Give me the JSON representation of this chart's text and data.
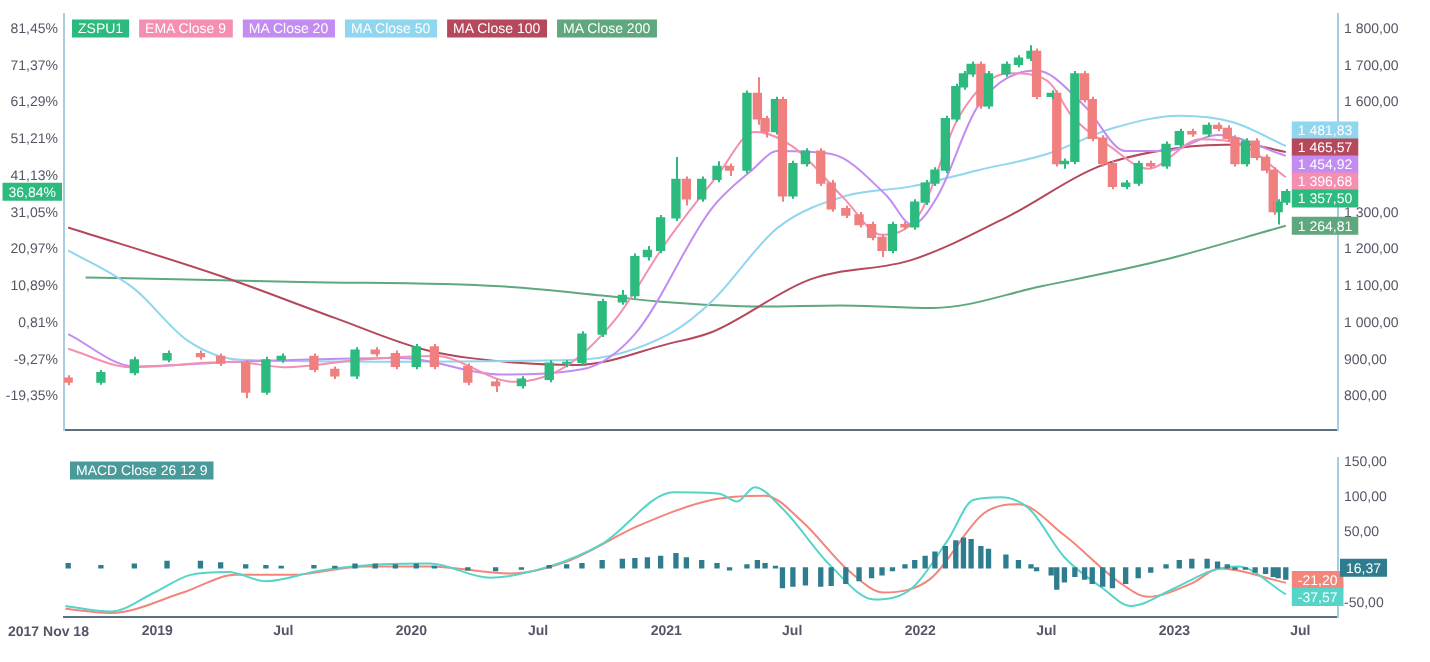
{
  "chart_data": [
    {
      "type": "candlestick",
      "legend": "top left",
      "tick_labels": "y",
      "xlim": [
        "2018-08-20",
        "2023-08-24"
      ],
      "ylim": [
        710,
        1840
      ],
      "yticks": [
        {
          "value": 800,
          "label": "800,00"
        },
        {
          "value": 900,
          "label": "900,00"
        },
        {
          "value": 1000,
          "label": "1 000,00"
        },
        {
          "value": 1100,
          "label": "1 100,00"
        },
        {
          "value": 1200,
          "label": "1 200,00"
        },
        {
          "value": 1300,
          "label": "1 300,00"
        },
        {
          "value": 1600,
          "label": "1 600,00"
        },
        {
          "value": 1700,
          "label": "1 700,00"
        },
        {
          "value": 1800,
          "label": "1 800,00"
        }
      ],
      "y2lim": [
        -28.43,
        85.49
      ],
      "y2ticks": [
        {
          "value": -19.35,
          "label": "-19,35%"
        },
        {
          "value": -9.27,
          "label": "-9,27%"
        },
        {
          "value": 0.81,
          "label": "0,81%"
        },
        {
          "value": 10.89,
          "label": "10,89%"
        },
        {
          "value": 20.97,
          "label": "20,97%"
        },
        {
          "value": 31.05,
          "label": "31,05%"
        },
        {
          "value": 41.13,
          "label": "41,13%"
        },
        {
          "value": 51.21,
          "label": "51,21%"
        },
        {
          "value": 61.29,
          "label": "61,29%"
        },
        {
          "value": 71.37,
          "label": "71,37%"
        },
        {
          "value": 81.45,
          "label": "81,45%"
        }
      ],
      "series": [
        {
          "name": "ZSPU1",
          "x": [
            "2018-08-26",
            "2018-10-12",
            "2018-11-29",
            "2019-01-15",
            "2019-03-04",
            "2019-04-02",
            "2019-05-08",
            "2019-06-06",
            "2019-06-28",
            "2019-08-14",
            "2019-09-13",
            "2019-10-12",
            "2019-11-10",
            "2019-12-09",
            "2020-01-08",
            "2020-02-03",
            "2020-03-22",
            "2020-05-01",
            "2020-06-07",
            "2020-07-17",
            "2020-08-11",
            "2020-09-02",
            "2020-10-01",
            "2020-10-30",
            "2020-11-17",
            "2020-12-05",
            "2020-12-24",
            "2021-01-15",
            "2021-01-30",
            "2021-02-21",
            "2021-03-15",
            "2021-04-02",
            "2021-04-27",
            "2021-05-12",
            "2021-05-23",
            "2021-06-07",
            "2021-06-17",
            "2021-07-02",
            "2021-07-20",
            "2021-08-11",
            "2021-08-26",
            "2021-09-16",
            "2021-10-05",
            "2021-10-23",
            "2021-11-07",
            "2021-11-22",
            "2021-12-10",
            "2021-12-24",
            "2022-01-08",
            "2022-01-22",
            "2022-02-06",
            "2022-02-21",
            "2022-03-04",
            "2022-03-15",
            "2022-03-29",
            "2022-04-09",
            "2022-05-04",
            "2022-05-22",
            "2022-06-09",
            "2022-06-17",
            "2022-07-08",
            "2022-07-16",
            "2022-07-27",
            "2022-08-11",
            "2022-08-25",
            "2022-09-05",
            "2022-09-20",
            "2022-10-04",
            "2022-10-23",
            "2022-11-10",
            "2022-11-28",
            "2022-12-20",
            "2023-01-08",
            "2023-01-26",
            "2023-02-17",
            "2023-03-04",
            "2023-03-18",
            "2023-03-29",
            "2023-04-13",
            "2023-04-27",
            "2023-05-12",
            "2023-05-23",
            "2023-05-30",
            "2023-06-10"
          ],
          "ohlc": [
            [
              850,
              858,
              831,
              839
            ],
            [
              839,
              872,
              832,
              865
            ],
            [
              865,
              908,
              858,
              900
            ],
            [
              900,
              925,
              893,
              917
            ],
            [
              917,
              925,
              901,
              909
            ],
            [
              909,
              917,
              883,
              891
            ],
            [
              891,
              899,
              795,
              812
            ],
            [
              812,
              908,
              805,
              900
            ],
            [
              900,
              917,
              892,
              909
            ],
            [
              909,
              917,
              866,
              874
            ],
            [
              874,
              882,
              848,
              856
            ],
            [
              856,
              934,
              848,
              926
            ],
            [
              926,
              934,
              909,
              917
            ],
            [
              917,
              925,
              874,
              882
            ],
            [
              882,
              943,
              874,
              935
            ],
            [
              935,
              943,
              874,
              882
            ],
            [
              882,
              890,
              831,
              839
            ],
            [
              839,
              847,
              812,
              830
            ],
            [
              830,
              855,
              822,
              847
            ],
            [
              847,
              899,
              839,
              891
            ],
            [
              891,
              899,
              880,
              893
            ],
            [
              893,
              978,
              885,
              970
            ],
            [
              970,
              1066,
              962,
              1058
            ],
            [
              1058,
              1090,
              1050,
              1075
            ],
            [
              1075,
              1189,
              1067,
              1181
            ],
            [
              1181,
              1210,
              1170,
              1198
            ],
            [
              1198,
              1294,
              1190,
              1286
            ],
            [
              1286,
              1452,
              1278,
              1391
            ],
            [
              1391,
              1399,
              1320,
              1338
            ],
            [
              1338,
              1399,
              1330,
              1391
            ],
            [
              1391,
              1440,
              1383,
              1426
            ],
            [
              1426,
              1434,
              1400,
              1416
            ],
            [
              1416,
              1633,
              1408,
              1625
            ],
            [
              1625,
              1669,
              1540,
              1556
            ],
            [
              1556,
              1564,
              1505,
              1521
            ],
            [
              1521,
              1616,
              1513,
              1608
            ],
            [
              1608,
              1616,
              1330,
              1346
            ],
            [
              1346,
              1442,
              1338,
              1434
            ],
            [
              1434,
              1476,
              1426,
              1468
            ],
            [
              1468,
              1476,
              1373,
              1381
            ],
            [
              1381,
              1389,
              1303,
              1311
            ],
            [
              1311,
              1319,
              1286,
              1294
            ],
            [
              1294,
              1302,
              1260,
              1268
            ],
            [
              1268,
              1276,
              1225,
              1233
            ],
            [
              1233,
              1241,
              1180,
              1198
            ],
            [
              1198,
              1276,
              1190,
              1268
            ],
            [
              1268,
              1276,
              1254,
              1262
            ],
            [
              1262,
              1337,
              1254,
              1329
            ],
            [
              1329,
              1389,
              1321,
              1381
            ],
            [
              1381,
              1424,
              1373,
              1416
            ],
            [
              1416,
              1564,
              1408,
              1556
            ],
            [
              1556,
              1651,
              1548,
              1643
            ],
            [
              1643,
              1686,
              1635,
              1678
            ],
            [
              1678,
              1712,
              1670,
              1704
            ],
            [
              1704,
              1712,
              1583,
              1591
            ],
            [
              1591,
              1686,
              1583,
              1678
            ],
            [
              1678,
              1712,
              1670,
              1704
            ],
            [
              1704,
              1729,
              1696,
              1721
            ],
            [
              1721,
              1756,
              1713,
              1739
            ],
            [
              1739,
              1747,
              1609,
              1617
            ],
            [
              1617,
              1633,
              1609,
              1625
            ],
            [
              1625,
              1633,
              1426,
              1434
            ],
            [
              1434,
              1448,
              1420,
              1440
            ],
            [
              1440,
              1686,
              1432,
              1678
            ],
            [
              1678,
              1686,
              1600,
              1608
            ],
            [
              1608,
              1616,
              1495,
              1503
            ],
            [
              1503,
              1511,
              1426,
              1434
            ],
            [
              1434,
              1442,
              1364,
              1372
            ],
            [
              1372,
              1389,
              1364,
              1381
            ],
            [
              1381,
              1442,
              1373,
              1434
            ],
            [
              1434,
              1442,
              1420,
              1428
            ],
            [
              1428,
              1494,
              1420,
              1486
            ],
            [
              1486,
              1529,
              1478,
              1521
            ],
            [
              1521,
              1529,
              1507,
              1515
            ],
            [
              1515,
              1546,
              1507,
              1538
            ],
            [
              1538,
              1546,
              1522,
              1530
            ],
            [
              1530,
              1538,
              1495,
              1503
            ],
            [
              1503,
              1511,
              1426,
              1434
            ],
            [
              1434,
              1503,
              1426,
              1495
            ],
            [
              1495,
              1503,
              1443,
              1451
            ],
            [
              1451,
              1459,
              1408,
              1416
            ],
            [
              1416,
              1424,
              1295,
              1303
            ],
            [
              1303,
              1337,
              1268,
              1329
            ],
            [
              1329,
              1365,
              1321,
              1357.5
            ]
          ],
          "value_labels": [
            null,
            null,
            null,
            null,
            null,
            null,
            null,
            null,
            null,
            null,
            null,
            null,
            null,
            null,
            null,
            null,
            null,
            null,
            null,
            null,
            null,
            null,
            null,
            null,
            null,
            null,
            null,
            null,
            null,
            null,
            null,
            null,
            null,
            null,
            null,
            null,
            null,
            null,
            null,
            null,
            null,
            null,
            null,
            null,
            null,
            null,
            null,
            null,
            null,
            null,
            null,
            null,
            null,
            null,
            null,
            null,
            null,
            null,
            null,
            null,
            null,
            null,
            null,
            null,
            null,
            null,
            null,
            null,
            null,
            null,
            null,
            null,
            null,
            null,
            null,
            null,
            null,
            null,
            null,
            null,
            null,
            null,
            null,
            "1 357,50"
          ],
          "colors": [
            "#f07f7f",
            "#2dba7e",
            "#2dba7e",
            "#2dba7e",
            "#f07f7f",
            "#f07f7f",
            "#f07f7f",
            "#2dba7e",
            "#2dba7e",
            "#f07f7f",
            "#f07f7f",
            "#2dba7e",
            "#f07f7f",
            "#f07f7f",
            "#2dba7e",
            "#f07f7f",
            "#f07f7f",
            "#f07f7f",
            "#2dba7e",
            "#2dba7e",
            "#2dba7e",
            "#2dba7e",
            "#2dba7e",
            "#2dba7e",
            "#2dba7e",
            "#2dba7e",
            "#2dba7e",
            "#2dba7e",
            "#f07f7f",
            "#2dba7e",
            "#2dba7e",
            "#f07f7f",
            "#2dba7e",
            "#f07f7f",
            "#f07f7f",
            "#2dba7e",
            "#f07f7f",
            "#2dba7e",
            "#2dba7e",
            "#f07f7f",
            "#f07f7f",
            "#f07f7f",
            "#f07f7f",
            "#f07f7f",
            "#f07f7f",
            "#2dba7e",
            "#f07f7f",
            "#2dba7e",
            "#2dba7e",
            "#2dba7e",
            "#2dba7e",
            "#2dba7e",
            "#2dba7e",
            "#2dba7e",
            "#f07f7f",
            "#2dba7e",
            "#2dba7e",
            "#2dba7e",
            "#2dba7e",
            "#f07f7f",
            "#2dba7e",
            "#f07f7f",
            "#2dba7e",
            "#2dba7e",
            "#f07f7f",
            "#f07f7f",
            "#f07f7f",
            "#f07f7f",
            "#2dba7e",
            "#2dba7e",
            "#f07f7f",
            "#2dba7e",
            "#2dba7e",
            "#f07f7f",
            "#2dba7e",
            "#f07f7f",
            "#f07f7f",
            "#f07f7f",
            "#2dba7e",
            "#f07f7f",
            "#f07f7f",
            "#f07f7f",
            "#2dba7e",
            "#2dba7e"
          ]
        },
        {
          "name": "EMA Close 9",
          "type": "line",
          "color": "#f48fb1",
          "x": [
            "2018-08-26",
            "2018-11-24",
            "2019-04-20",
            "2019-07-01",
            "2019-10-20",
            "2020-02-05",
            "2020-05-27",
            "2020-08-08",
            "2020-10-20",
            "2021-01-01",
            "2021-03-15",
            "2021-05-08",
            "2021-07-02",
            "2021-09-13",
            "2021-11-07",
            "2022-01-01",
            "2022-02-25",
            "2022-05-08",
            "2022-07-02",
            "2022-08-08",
            "2022-10-01",
            "2022-11-24",
            "2023-02-07",
            "2023-04-02",
            "2023-06-10"
          ],
          "values": [
            930,
            880,
            895,
            880,
            900,
            910,
            840,
            880,
            1010,
            1220,
            1400,
            1520,
            1480,
            1340,
            1240,
            1300,
            1560,
            1680,
            1660,
            1560,
            1480,
            1420,
            1500,
            1490,
            1396.68
          ],
          "value_labels": [
            null,
            null,
            null,
            null,
            null,
            null,
            null,
            null,
            null,
            null,
            null,
            null,
            null,
            null,
            null,
            null,
            null,
            null,
            null,
            null,
            null,
            null,
            null,
            null,
            "1 396,68"
          ]
        },
        {
          "name": "MA Close 20",
          "type": "line",
          "color": "#c38cf2",
          "x": [
            "2018-08-26",
            "2018-11-29",
            "2019-05-01",
            "2019-12-17",
            "2020-05-08",
            "2020-09-02",
            "2020-11-17",
            "2021-03-07",
            "2021-05-04",
            "2021-06-10",
            "2021-08-26",
            "2021-11-14",
            "2021-12-20",
            "2022-01-26",
            "2022-03-25",
            "2022-06-17",
            "2022-08-25",
            "2022-10-23",
            "2022-12-20",
            "2023-03-04",
            "2023-06-10"
          ],
          "values": [
            970,
            882,
            895,
            905,
            860,
            874,
            970,
            1311,
            1416,
            1468,
            1460,
            1346,
            1268,
            1346,
            1591,
            1687,
            1591,
            1468,
            1468,
            1512,
            1454.92
          ],
          "value_labels": [
            null,
            null,
            null,
            null,
            null,
            null,
            null,
            null,
            null,
            null,
            null,
            null,
            null,
            null,
            null,
            null,
            null,
            null,
            null,
            null,
            "1 454,92"
          ]
        },
        {
          "name": "MA Close 50",
          "type": "line",
          "color": "#8fd6ee",
          "x": [
            "2018-08-26",
            "2018-11-29",
            "2019-02-13",
            "2019-05-01",
            "2019-12-17",
            "2020-08-26",
            "2021-01-05",
            "2021-03-07",
            "2021-06-10",
            "2021-09-16",
            "2021-12-20",
            "2022-03-25",
            "2022-07-02",
            "2022-10-04",
            "2023-01-08",
            "2023-03-25",
            "2023-06-10"
          ],
          "values": [
            1198,
            1093,
            953,
            900,
            895,
            900,
            970,
            1058,
            1259,
            1346,
            1372,
            1416,
            1460,
            1530,
            1564,
            1547,
            1481.83
          ],
          "value_labels": [
            null,
            null,
            null,
            null,
            null,
            null,
            null,
            null,
            null,
            null,
            null,
            null,
            null,
            null,
            null,
            null,
            "1 481,83"
          ]
        },
        {
          "name": "MA Close 100",
          "type": "line",
          "color": "#b5485a",
          "x": [
            "2018-08-26",
            "2019-04-02",
            "2019-09-13",
            "2020-01-23",
            "2020-06-07",
            "2020-08-26",
            "2021-01-05",
            "2021-03-07",
            "2021-07-27",
            "2021-12-20",
            "2022-05-11",
            "2022-09-13",
            "2023-01-08",
            "2023-04-13",
            "2023-06-10"
          ],
          "values": [
            1260,
            1128,
            1014,
            926,
            891,
            886,
            944,
            975,
            1119,
            1172,
            1294,
            1425,
            1477,
            1486,
            1465.57
          ],
          "value_labels": [
            null,
            null,
            null,
            null,
            null,
            null,
            null,
            null,
            null,
            null,
            null,
            null,
            null,
            null,
            "1 465,57"
          ]
        },
        {
          "name": "MA Close 200",
          "type": "line",
          "color": "#5fa77c",
          "x": [
            "2018-09-20",
            "2019-07-27",
            "2020-05-08",
            "2020-10-01",
            "2020-12-24",
            "2021-05-19",
            "2021-09-09",
            "2022-01-19",
            "2022-06-24",
            "2022-12-13",
            "2023-06-10"
          ],
          "values": [
            1124,
            1112,
            1100,
            1075,
            1058,
            1045,
            1048,
            1041,
            1100,
            1170,
            1264.81
          ],
          "value_labels": [
            null,
            null,
            null,
            null,
            null,
            null,
            null,
            null,
            null,
            null,
            "1 264,81"
          ]
        }
      ],
      "annotations": [
        "36,84%"
      ]
    },
    {
      "type": "line",
      "title": "MACD Close 26 12 9",
      "xlim": [
        "2018-08-20",
        "2023-08-24"
      ],
      "xlabel": "2017 Nov 18",
      "xticks": [
        "2019",
        {
          "value": "2019-07",
          "label": "Jul"
        },
        "2020",
        {
          "value": "2020-07",
          "label": "Jul"
        },
        "2021",
        {
          "value": "2021-07",
          "label": "Jul"
        },
        "2022",
        {
          "value": "2022-07",
          "label": "Jul"
        },
        "2023",
        {
          "value": "2023-07",
          "label": "Jul"
        }
      ],
      "ylim": [
        -70,
        155
      ],
      "yticks": [
        {
          "value": -50,
          "label": "-50,00"
        },
        {
          "value": 50,
          "label": "50,00"
        },
        {
          "value": 100,
          "label": "100,00"
        },
        {
          "value": 150,
          "label": "150,00"
        }
      ],
      "series": [
        {
          "type": "bar",
          "color": "#2e7d8f",
          "x": [
            "2018-08-26",
            "2018-10-12",
            "2018-11-29",
            "2019-01-15",
            "2019-03-04",
            "2019-04-02",
            "2019-05-08",
            "2019-06-06",
            "2019-06-28",
            "2019-08-14",
            "2019-09-13",
            "2019-10-12",
            "2019-11-10",
            "2019-12-09",
            "2020-01-08",
            "2020-02-03",
            "2020-03-22",
            "2020-05-01",
            "2020-06-07",
            "2020-07-17",
            "2020-08-11",
            "2020-09-02",
            "2020-10-01",
            "2020-10-30",
            "2020-11-17",
            "2020-12-05",
            "2020-12-24",
            "2021-01-15",
            "2021-01-30",
            "2021-02-21",
            "2021-03-15",
            "2021-04-02",
            "2021-04-27",
            "2021-05-12",
            "2021-05-23",
            "2021-06-07",
            "2021-06-17",
            "2021-07-02",
            "2021-07-20",
            "2021-08-11",
            "2021-08-26",
            "2021-09-16",
            "2021-10-05",
            "2021-10-23",
            "2021-11-07",
            "2021-11-22",
            "2021-12-10",
            "2021-12-24",
            "2022-01-08",
            "2022-01-22",
            "2022-02-06",
            "2022-02-21",
            "2022-03-04",
            "2022-03-15",
            "2022-03-29",
            "2022-04-09",
            "2022-05-04",
            "2022-05-22",
            "2022-06-09",
            "2022-06-17",
            "2022-07-08",
            "2022-07-16",
            "2022-07-27",
            "2022-08-11",
            "2022-08-25",
            "2022-09-05",
            "2022-09-20",
            "2022-10-04",
            "2022-10-23",
            "2022-11-10",
            "2022-11-28",
            "2022-12-20",
            "2023-01-08",
            "2023-01-26",
            "2023-02-17",
            "2023-03-04",
            "2023-03-18",
            "2023-03-29",
            "2023-04-13",
            "2023-04-27",
            "2023-05-12",
            "2023-05-23",
            "2023-05-30",
            "2023-06-10"
          ],
          "values": [
            6,
            3,
            5,
            9,
            9,
            7,
            4,
            3,
            2,
            3,
            2,
            5,
            5,
            4,
            5,
            2,
            -3,
            -4,
            -2,
            3,
            4,
            6,
            10,
            12,
            13,
            14,
            16,
            20,
            14,
            10,
            6,
            -3,
            4,
            10,
            6,
            2,
            -28,
            -26,
            -24,
            -26,
            -25,
            -22,
            -18,
            -14,
            -10,
            -4,
            4,
            10,
            16,
            22,
            30,
            38,
            42,
            40,
            30,
            26,
            18,
            10,
            4,
            -4,
            -10,
            -30,
            -20,
            -12,
            -16,
            -22,
            -26,
            -28,
            -22,
            -14,
            -6,
            4,
            10,
            12,
            12,
            8,
            4,
            -2,
            -2,
            -6,
            -8,
            -12,
            -14,
            -16
          ]
        },
        {
          "color": "#56d4c8",
          "x": [
            "2018-08-22",
            "2018-10-26",
            "2018-12-28",
            "2019-02-18",
            "2019-04-13",
            "2019-06-06",
            "2019-08-22",
            "2019-11-21",
            "2020-01-27",
            "2020-04-23",
            "2020-07-17",
            "2020-10-01",
            "2021-01-12",
            "2021-03-18",
            "2021-04-13",
            "2021-05-08",
            "2021-06-17",
            "2021-08-26",
            "2021-10-27",
            "2021-12-20",
            "2022-02-10",
            "2022-03-18",
            "2022-04-27",
            "2022-06-06",
            "2022-07-27",
            "2022-09-20",
            "2022-10-30",
            "2023-01-01",
            "2023-02-24",
            "2023-04-02",
            "2023-06-10"
          ],
          "values": [
            -54,
            -62,
            -35,
            -10,
            -6,
            -19,
            -4,
            5,
            6,
            -14,
            2,
            34,
            107,
            105,
            94,
            114,
            84,
            2,
            -45,
            -29,
            40,
            96,
            100,
            84,
            15,
            -29,
            -54,
            -29,
            -4,
            2,
            -37.57
          ],
          "value_labels": [
            null,
            null,
            null,
            null,
            null,
            null,
            null,
            null,
            null,
            null,
            null,
            null,
            null,
            null,
            null,
            null,
            null,
            null,
            null,
            null,
            null,
            null,
            null,
            null,
            null,
            null,
            null,
            null,
            null,
            null,
            "-37,57"
          ]
        },
        {
          "color": "#f4857a",
          "x": [
            "2018-08-22",
            "2018-10-26",
            "2019-02-07",
            "2019-04-24",
            "2019-07-13",
            "2019-10-27",
            "2020-01-27",
            "2020-05-23",
            "2020-08-11",
            "2020-11-21",
            "2021-03-07",
            "2021-05-23",
            "2021-07-16",
            "2021-09-20",
            "2021-11-10",
            "2022-01-15",
            "2022-04-02",
            "2022-05-22",
            "2022-07-27",
            "2022-10-16",
            "2022-11-24",
            "2023-01-26",
            "2023-03-07",
            "2023-06-10"
          ],
          "values": [
            -58,
            -64,
            -35,
            -10,
            -10,
            2,
            2,
            -8,
            9,
            59,
            96,
            102,
            65,
            -4,
            -35,
            -16,
            77,
            90,
            46,
            -22,
            -41,
            -22,
            -1,
            -21.2
          ],
          "value_labels": [
            null,
            null,
            null,
            null,
            null,
            null,
            null,
            null,
            null,
            null,
            null,
            null,
            null,
            null,
            null,
            null,
            null,
            null,
            null,
            null,
            null,
            null,
            null,
            "-21,20"
          ]
        }
      ],
      "annotations": [
        "16,37"
      ]
    }
  ]
}
